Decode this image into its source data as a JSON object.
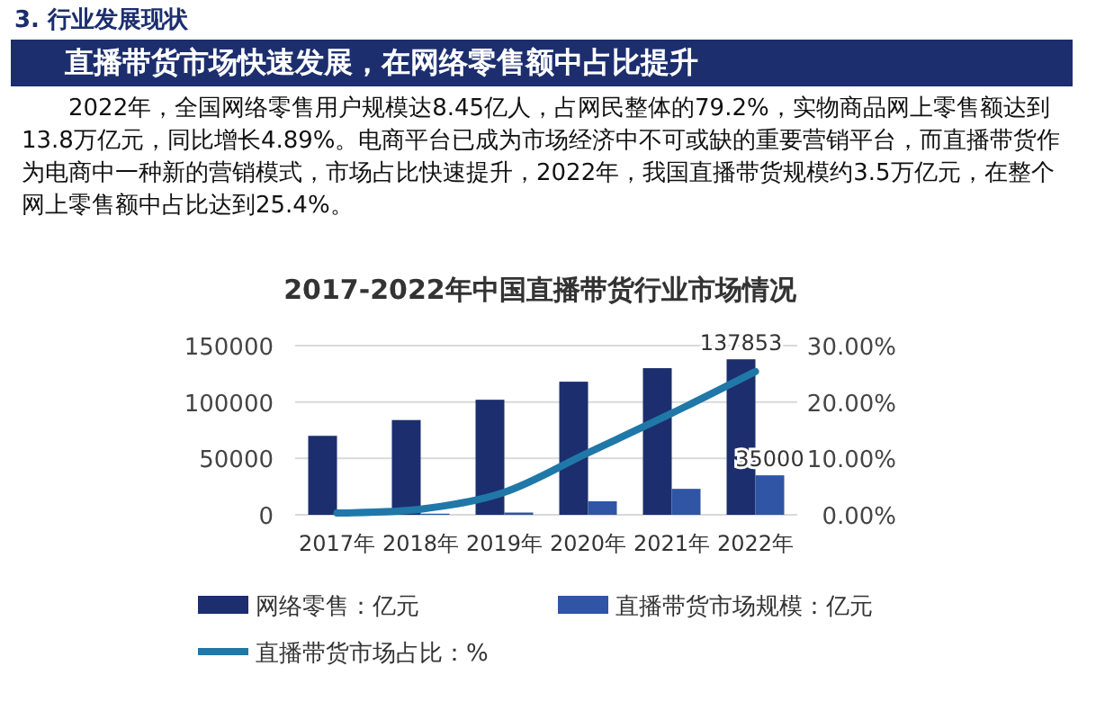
{
  "chart_data": {
    "type": "bar",
    "title": "2017-2022年中国直播带货行业市场情况",
    "subtitle": "直播带货市场快速发展，在网络零售额中占比提升",
    "annotations": [
      "3. 行业发展现状",
      "2022年，全国网络零售用户规模达8.45亿人，占网民整体的79.2%，实物商品网上零售额达到13.8万亿元，同比增长4.89%。电商平台已成为市场经济中不可或缺的重要营销平台，而直播带货作为电商中一种新的营销模式，市场占比快速提升，2022年，我国直播带货规模约3.5万亿元，在整个网上零售额中占比达到25.4%。"
    ],
    "categories": [
      "2017年",
      "2018年",
      "2019年",
      "2020年",
      "2021年",
      "2022年"
    ],
    "series": [
      {
        "name": "网络零售：亿元",
        "color": "#1c2e6e",
        "values": [
          70000,
          84000,
          102000,
          118000,
          130000,
          137853
        ],
        "value_labels": [
          null,
          null,
          null,
          null,
          null,
          "137853"
        ]
      },
      {
        "name": "直播带货市场规模：亿元",
        "color": "#2f55a4",
        "values": [
          0,
          1000,
          2000,
          12000,
          23000,
          35000
        ],
        "value_labels": [
          null,
          null,
          null,
          null,
          null,
          "35000"
        ]
      },
      {
        "name": "直播带货市场占比：%",
        "type": "line",
        "axis": "y2",
        "color": "#1f78a8",
        "values": [
          0.3,
          1,
          4,
          11,
          18,
          25.4
        ]
      }
    ],
    "ylim": [
      0,
      150000
    ],
    "yticks": [
      0,
      50000,
      100000,
      150000
    ],
    "y2lim": [
      0,
      30
    ],
    "y2ticks": [
      {
        "value": 0,
        "label": "0.00%"
      },
      {
        "value": 10,
        "label": "10.00%"
      },
      {
        "value": 20,
        "label": "20.00%"
      },
      {
        "value": 30,
        "label": "30.00%"
      }
    ],
    "grid": "y",
    "legend": "bottom",
    "line_style": "solid",
    "marker": "none"
  }
}
